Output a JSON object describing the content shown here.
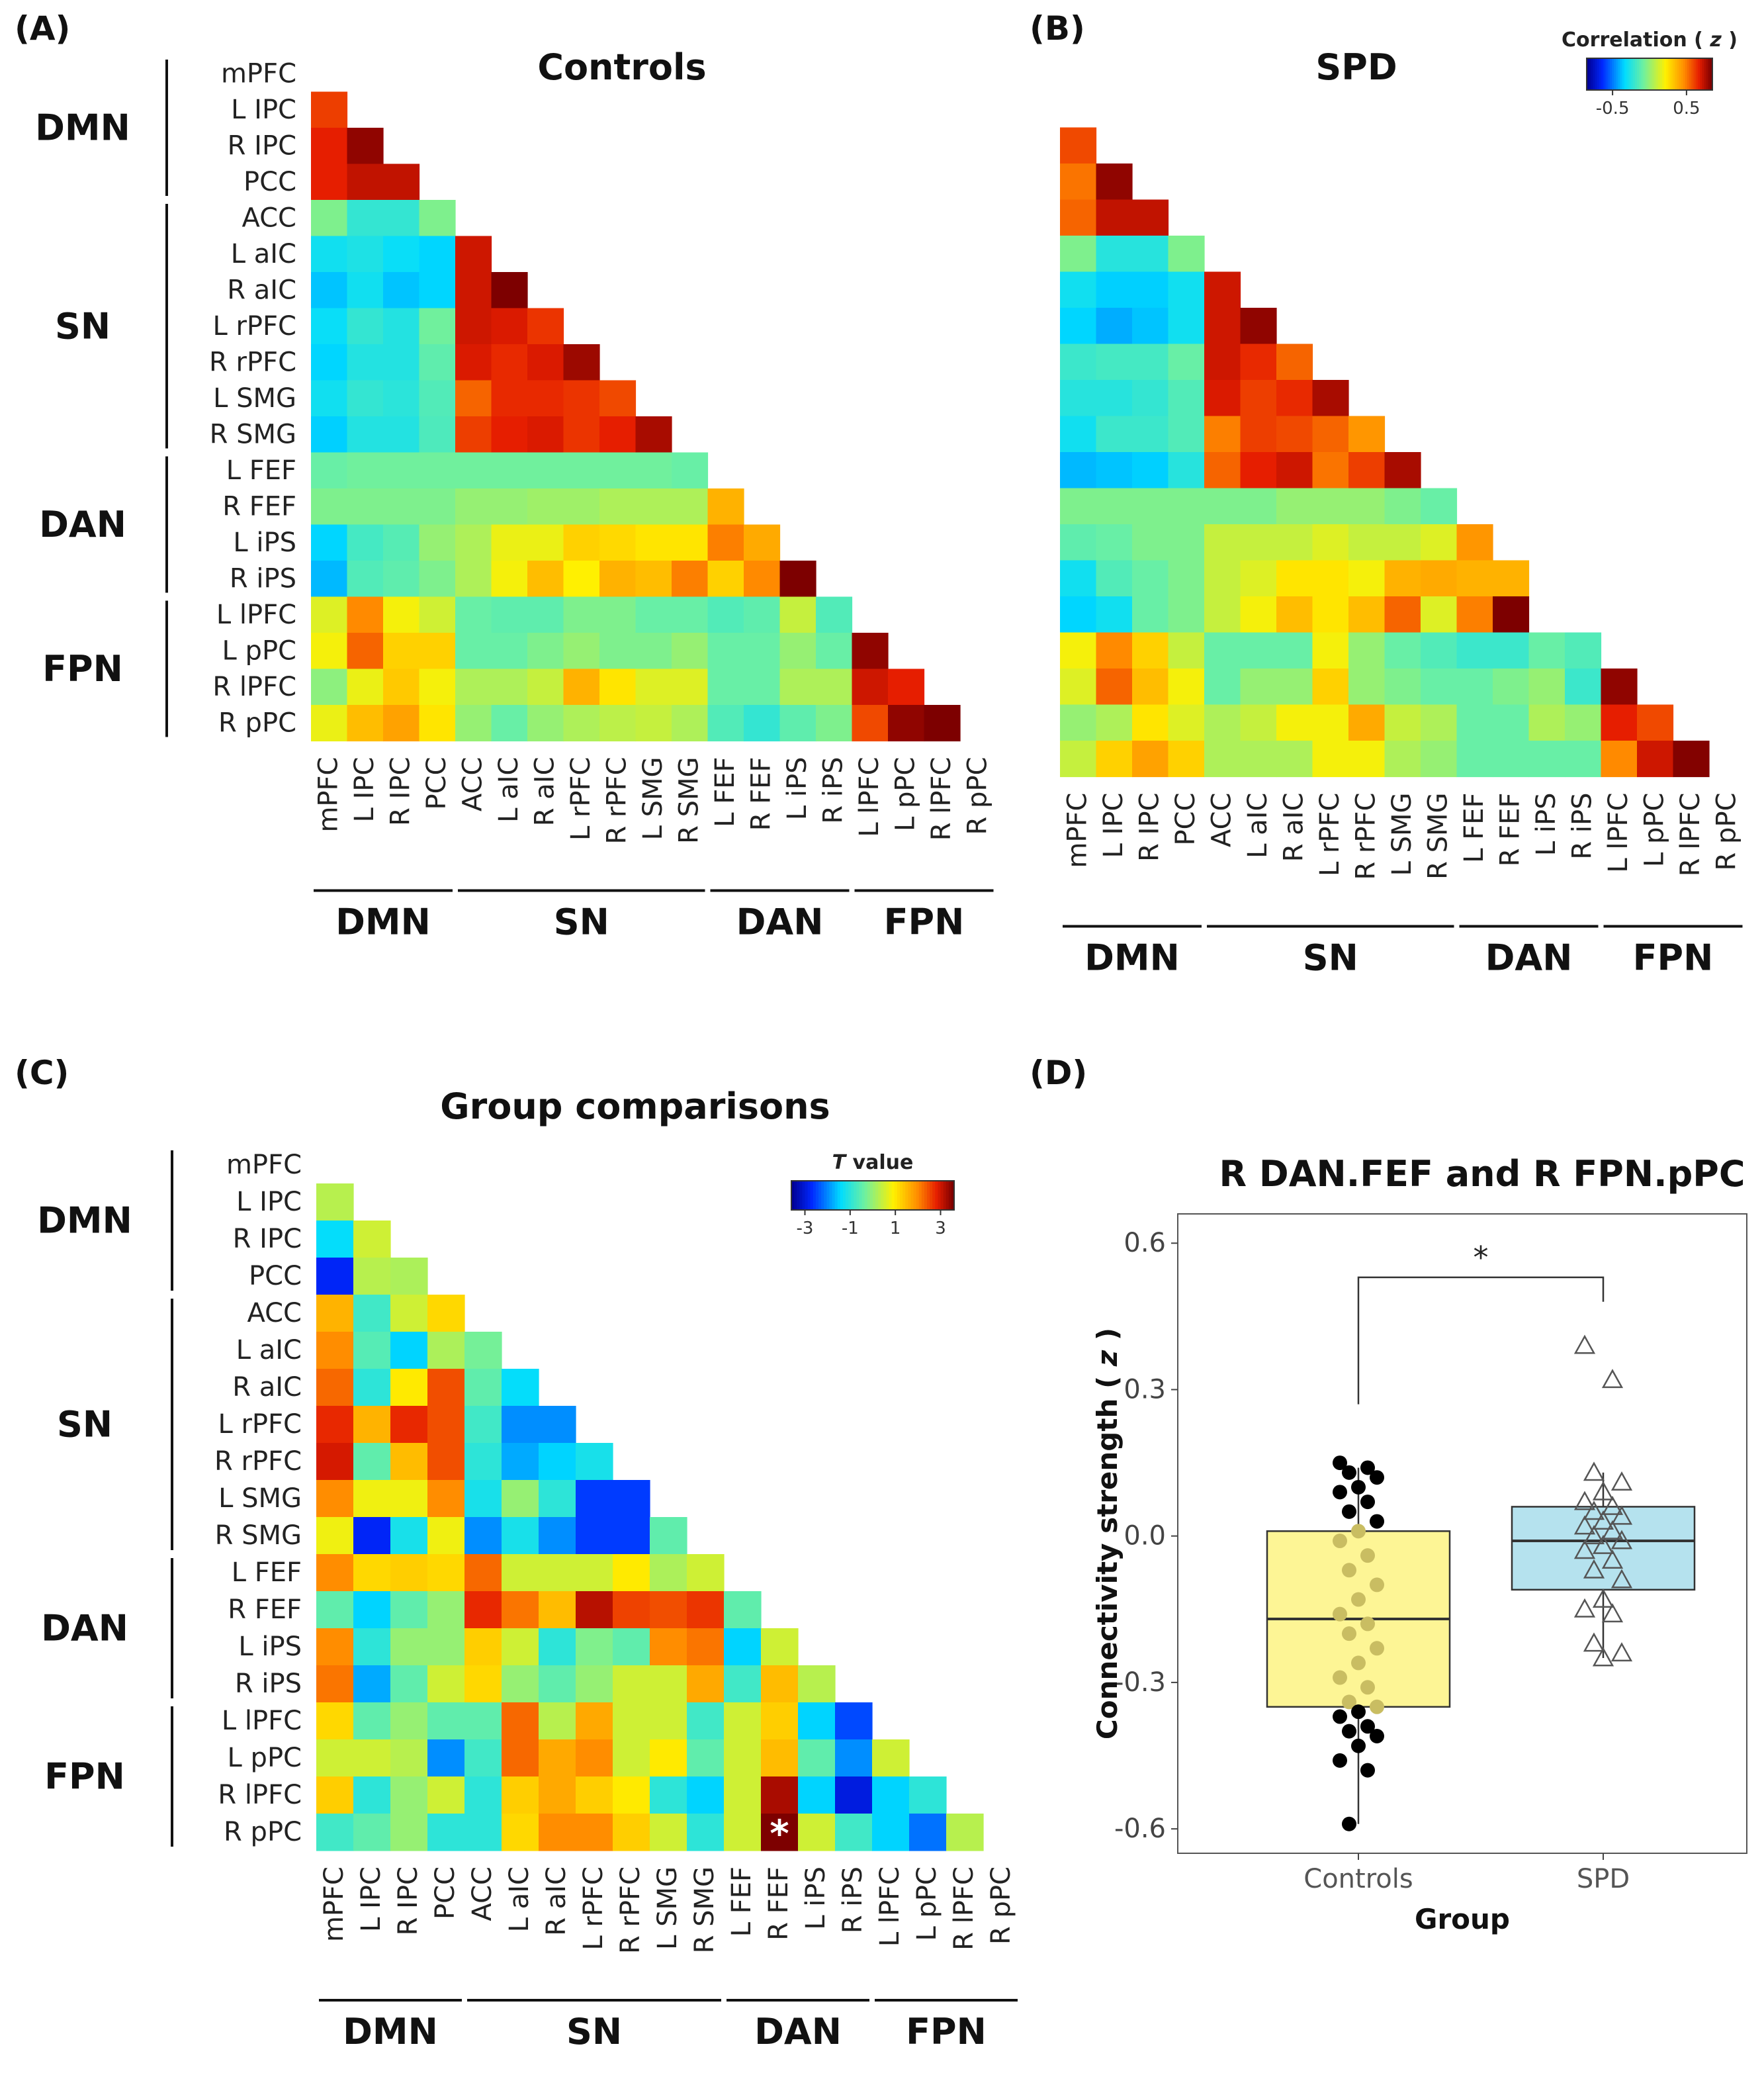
{
  "labels": {
    "a": "(A)",
    "b": "(B)",
    "c": "(C)",
    "d": "(D)"
  },
  "titles": {
    "a": "Controls",
    "b": "SPD",
    "c": "Group comparisons",
    "d": "R DAN.FEF and R FPN.pPC"
  },
  "regions": [
    "mPFC",
    "L IPC",
    "R IPC",
    "PCC",
    "ACC",
    "L aIC",
    "R aIC",
    "L rPFC",
    "R rPFC",
    "L SMG",
    "R SMG",
    "L FEF",
    "R FEF",
    "L iPS",
    "R iPS",
    "L lPFC",
    "L pPC",
    "R lPFC",
    "R pPC"
  ],
  "networks": [
    {
      "name": "DMN",
      "start": 0,
      "end": 3
    },
    {
      "name": "SN",
      "start": 4,
      "end": 10
    },
    {
      "name": "DAN",
      "start": 11,
      "end": 14
    },
    {
      "name": "FPN",
      "start": 15,
      "end": 18
    }
  ],
  "colorbars": {
    "correlation": {
      "title_prefix": "Correlation ( ",
      "title_var": "z",
      "title_suffix": " )",
      "ticks": [
        "-0.5",
        "0.5"
      ],
      "tick_values": [
        -0.5,
        0.5
      ],
      "range": [
        -0.85,
        0.85
      ]
    },
    "tvalue": {
      "title_var": "T",
      "title_suffix": " value",
      "ticks": [
        "-3",
        "-1",
        "1",
        "3"
      ],
      "tick_values": [
        -3,
        -1,
        1,
        3
      ],
      "range": [
        -3.6,
        3.6
      ]
    }
  },
  "significance_marker": "*",
  "chart_data": [
    {
      "panel": "A",
      "type": "heatmap",
      "title": "Controls",
      "value_unit": "Correlation (z)",
      "matrix": [
        [
          0.62
        ],
        [
          0.68,
          0.82
        ],
        [
          0.68,
          0.74,
          0.74
        ],
        [
          -0.05,
          -0.22,
          -0.22,
          -0.05
        ],
        [
          -0.3,
          -0.27,
          -0.32,
          -0.35,
          0.72
        ],
        [
          -0.38,
          -0.3,
          -0.38,
          -0.35,
          0.72,
          0.88
        ],
        [
          -0.32,
          -0.22,
          -0.26,
          -0.08,
          0.72,
          0.7,
          0.64
        ],
        [
          -0.35,
          -0.26,
          -0.26,
          -0.12,
          0.7,
          0.66,
          0.7,
          0.8
        ],
        [
          -0.3,
          -0.22,
          -0.24,
          -0.15,
          0.55,
          0.66,
          0.66,
          0.64,
          0.6
        ],
        [
          -0.36,
          -0.26,
          -0.26,
          -0.16,
          0.62,
          0.68,
          0.7,
          0.64,
          0.68,
          0.78
        ],
        [
          -0.1,
          -0.08,
          -0.08,
          -0.08,
          -0.08,
          -0.08,
          -0.08,
          -0.08,
          -0.08,
          -0.08,
          -0.1
        ],
        [
          -0.05,
          -0.05,
          -0.05,
          -0.05,
          0.0,
          0.0,
          0.02,
          0.02,
          0.05,
          0.05,
          0.05,
          0.38
        ],
        [
          -0.35,
          -0.18,
          -0.14,
          0.0,
          0.05,
          0.18,
          0.18,
          0.3,
          0.28,
          0.25,
          0.25,
          0.5,
          0.4
        ],
        [
          -0.4,
          -0.15,
          -0.12,
          -0.05,
          0.05,
          0.2,
          0.35,
          0.22,
          0.38,
          0.35,
          0.5,
          0.3,
          0.48,
          0.88
        ],
        [
          0.15,
          0.48,
          0.2,
          0.12,
          -0.1,
          -0.12,
          -0.12,
          -0.05,
          -0.05,
          -0.1,
          -0.1,
          -0.15,
          -0.12,
          0.1,
          -0.15
        ],
        [
          0.2,
          0.55,
          0.3,
          0.3,
          -0.1,
          -0.1,
          -0.05,
          0.0,
          -0.05,
          -0.05,
          0.0,
          -0.1,
          -0.1,
          0.0,
          -0.1,
          0.82
        ],
        [
          -0.02,
          0.18,
          0.32,
          0.2,
          0.05,
          0.05,
          0.1,
          0.38,
          0.25,
          0.15,
          0.15,
          -0.1,
          -0.1,
          0.05,
          0.05,
          0.72,
          0.68
        ],
        [
          0.18,
          0.35,
          0.42,
          0.25,
          0.0,
          -0.1,
          0.0,
          0.05,
          0.08,
          0.1,
          0.05,
          -0.15,
          -0.22,
          -0.12,
          -0.05,
          0.6,
          0.82,
          0.86
        ]
      ]
    },
    {
      "panel": "B",
      "type": "heatmap",
      "title": "SPD",
      "value_unit": "Correlation (z)",
      "matrix": [
        [
          0.6
        ],
        [
          0.52,
          0.82
        ],
        [
          0.55,
          0.74,
          0.74
        ],
        [
          -0.05,
          -0.25,
          -0.25,
          -0.05
        ],
        [
          -0.3,
          -0.36,
          -0.36,
          -0.3,
          0.72
        ],
        [
          -0.35,
          -0.42,
          -0.38,
          -0.3,
          0.72,
          0.82
        ],
        [
          -0.2,
          -0.18,
          -0.18,
          -0.1,
          0.72,
          0.66,
          0.55
        ],
        [
          -0.25,
          -0.25,
          -0.22,
          -0.15,
          0.7,
          0.62,
          0.66,
          0.78
        ],
        [
          -0.3,
          -0.2,
          -0.2,
          -0.15,
          0.5,
          0.62,
          0.6,
          0.55,
          0.45
        ],
        [
          -0.4,
          -0.38,
          -0.36,
          -0.25,
          0.55,
          0.68,
          0.72,
          0.52,
          0.62,
          0.78
        ],
        [
          -0.05,
          -0.05,
          -0.05,
          -0.05,
          -0.05,
          -0.05,
          0.0,
          0.0,
          0.0,
          -0.05,
          -0.1
        ],
        [
          -0.12,
          -0.1,
          -0.05,
          -0.05,
          0.1,
          0.1,
          0.1,
          0.15,
          0.1,
          0.1,
          0.15,
          0.45
        ],
        [
          -0.3,
          -0.15,
          -0.1,
          -0.05,
          0.1,
          0.15,
          0.25,
          0.25,
          0.2,
          0.38,
          0.4,
          0.38,
          0.38
        ],
        [
          -0.35,
          -0.3,
          -0.1,
          -0.05,
          0.1,
          0.2,
          0.35,
          0.25,
          0.35,
          0.55,
          0.15,
          0.5,
          0.88
        ],
        [
          0.2,
          0.48,
          0.3,
          0.1,
          -0.1,
          -0.1,
          -0.1,
          0.2,
          0.0,
          -0.1,
          -0.15,
          -0.2,
          -0.2,
          -0.1,
          -0.15
        ],
        [
          0.15,
          0.55,
          0.35,
          0.2,
          -0.1,
          0.0,
          0.0,
          0.3,
          0.0,
          -0.05,
          -0.1,
          -0.1,
          -0.05,
          0.0,
          -0.2,
          0.82
        ],
        [
          0.0,
          0.05,
          0.25,
          0.15,
          0.05,
          0.1,
          0.2,
          0.2,
          0.4,
          0.1,
          0.05,
          -0.1,
          -0.1,
          0.05,
          0.0,
          0.68,
          0.6
        ],
        [
          0.1,
          0.3,
          0.42,
          0.3,
          0.05,
          0.05,
          0.05,
          0.2,
          0.2,
          0.05,
          0.0,
          -0.1,
          -0.1,
          -0.1,
          -0.1,
          0.48,
          0.72,
          0.84
        ]
      ]
    },
    {
      "panel": "C",
      "type": "heatmap",
      "title": "Group comparisons",
      "value_unit": "T value",
      "matrix": [
        [
          0.3
        ],
        [
          -1.4,
          0.5
        ],
        [
          -2.8,
          0.3,
          0.2
        ],
        [
          1.6,
          -0.8,
          0.5,
          1.2
        ],
        [
          2.0,
          -0.6,
          -1.5,
          0.2,
          -0.3
        ],
        [
          2.3,
          -1.0,
          1.0,
          2.5,
          -0.5,
          -1.4
        ],
        [
          2.8,
          1.6,
          2.8,
          2.5,
          -0.8,
          -2.0,
          -2.0
        ],
        [
          3.0,
          -0.5,
          1.5,
          2.5,
          -1.0,
          -1.8,
          -1.5,
          -1.2
        ],
        [
          2.0,
          0.8,
          0.8,
          2.0,
          -1.2,
          0.0,
          -1.0,
          -2.6,
          -2.6
        ],
        [
          0.8,
          -2.8,
          -1.2,
          0.8,
          -2.0,
          -1.2,
          -2.0,
          -2.6,
          -2.6,
          -0.5
        ],
        [
          2.0,
          1.2,
          1.3,
          1.2,
          2.3,
          0.5,
          0.5,
          0.5,
          1.0,
          0.2,
          0.5
        ],
        [
          -0.5,
          -1.5,
          -0.5,
          0.0,
          2.8,
          2.2,
          1.5,
          3.2,
          2.6,
          2.5,
          2.7,
          -0.5
        ],
        [
          2.0,
          -1.0,
          0.0,
          0.0,
          1.3,
          0.5,
          -1.0,
          -0.2,
          -0.5,
          2.0,
          2.2,
          -1.5,
          0.5
        ],
        [
          2.2,
          -1.8,
          -0.5,
          0.5,
          1.2,
          0.0,
          -0.5,
          0.0,
          0.5,
          0.5,
          1.7,
          -0.8,
          1.5,
          0.3
        ],
        [
          1.2,
          -0.5,
          0.0,
          -0.5,
          -0.5,
          2.3,
          0.3,
          1.7,
          0.5,
          0.5,
          -0.8,
          0.5,
          1.3,
          -1.5,
          -2.5
        ],
        [
          0.5,
          0.5,
          0.3,
          -2.0,
          -0.8,
          2.3,
          1.7,
          2.0,
          0.5,
          1.0,
          -0.5,
          0.5,
          1.5,
          -0.5,
          -2.0,
          0.5
        ],
        [
          1.3,
          -1.0,
          0.0,
          0.5,
          -1.0,
          1.3,
          1.7,
          1.3,
          1.0,
          -1.0,
          -1.5,
          0.5,
          3.3,
          -1.5,
          -3.0,
          -1.5,
          -1.0
        ],
        [
          -0.8,
          -0.5,
          0.0,
          -1.0,
          -1.0,
          1.2,
          2.0,
          2.0,
          1.3,
          0.5,
          -1.0,
          0.5,
          3.8,
          0.5,
          -0.8,
          -1.5,
          -2.2,
          0.3
        ]
      ],
      "significant_cells": [
        {
          "row": "R pPC",
          "col": "R FEF"
        }
      ]
    },
    {
      "panel": "D",
      "type": "box",
      "title": "R DAN.FEF and R FPN.pPC",
      "xlabel": "Group",
      "ylabel_prefix": "Connectivity strength ( ",
      "ylabel_var": "z",
      "ylabel_suffix": " )",
      "categories": [
        "Controls",
        "SPD"
      ],
      "y_ticks": [
        0.6,
        0.3,
        0.0,
        -0.3,
        -0.6
      ],
      "y_tick_labels": [
        "0.6",
        "0.3",
        "0.0",
        "-0.3",
        "-0.6"
      ],
      "ylim": [
        -0.65,
        0.66
      ],
      "box_colors": [
        "#FDF595",
        "#B5E2EE"
      ],
      "significance": "*",
      "series": [
        {
          "name": "Controls",
          "q1": -0.35,
          "median": -0.17,
          "q3": 0.01,
          "whisker_low": -0.59,
          "whisker_high": 0.14,
          "points": [
            0.15,
            0.14,
            0.13,
            0.12,
            0.1,
            0.09,
            0.07,
            0.05,
            0.03,
            0.01,
            -0.01,
            -0.04,
            -0.07,
            -0.1,
            -0.13,
            -0.16,
            -0.18,
            -0.2,
            -0.23,
            -0.26,
            -0.29,
            -0.31,
            -0.34,
            -0.35,
            -0.36,
            -0.37,
            -0.39,
            -0.4,
            -0.41,
            -0.43,
            -0.46,
            -0.48,
            -0.59
          ]
        },
        {
          "name": "SPD",
          "q1": -0.11,
          "median": -0.01,
          "q3": 0.06,
          "whisker_low": -0.25,
          "whisker_high": 0.13,
          "points": [
            0.39,
            0.32,
            0.13,
            0.11,
            0.09,
            0.07,
            0.06,
            0.05,
            0.04,
            0.03,
            0.02,
            0.01,
            0.0,
            -0.01,
            -0.02,
            -0.03,
            -0.05,
            -0.07,
            -0.09,
            -0.13,
            -0.15,
            -0.16,
            -0.22,
            -0.24,
            -0.25
          ]
        }
      ]
    }
  ]
}
